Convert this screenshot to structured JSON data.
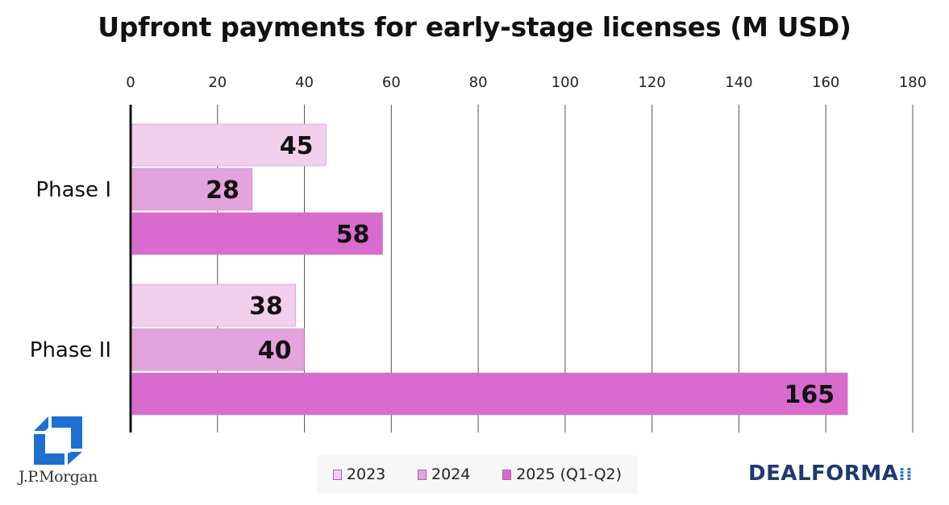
{
  "chart_data": {
    "type": "bar",
    "orientation": "horizontal",
    "title": "Upfront payments for early-stage licenses (M USD)",
    "xlabel": "",
    "ylabel": "",
    "xlim": [
      0,
      180
    ],
    "ticks": [
      "0",
      "20",
      "40",
      "60",
      "80",
      "100",
      "120",
      "140",
      "160",
      "180"
    ],
    "tick_values": [
      0,
      20,
      40,
      60,
      80,
      100,
      120,
      140,
      160,
      180
    ],
    "axis_position": "top",
    "grid": true,
    "legend_position": "bottom",
    "categories": [
      "Phase I",
      "Phase II"
    ],
    "series": [
      {
        "name": "2023",
        "color": "#f3cfee",
        "values": [
          45,
          38
        ],
        "labels": [
          "45",
          "38"
        ]
      },
      {
        "name": "2024",
        "color": "#e3a3dc",
        "values": [
          28,
          40
        ],
        "labels": [
          "28",
          "40"
        ]
      },
      {
        "name": "2025 (Q1-Q2)",
        "color": "#d96bcf",
        "values": [
          58,
          165
        ],
        "labels": [
          "58",
          "165"
        ]
      }
    ]
  },
  "branding": {
    "left_logo_text": "J.P.Morgan",
    "right_logo_text": "DEALFORMA",
    "right_logo_dots": "⁞⁞"
  }
}
